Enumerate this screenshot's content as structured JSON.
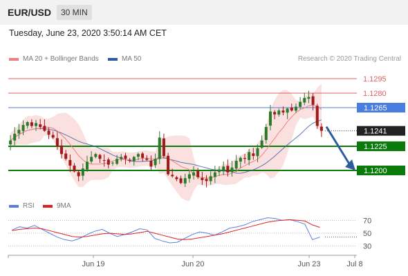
{
  "header": {
    "pair": "EUR/USD",
    "interval": "30 MIN"
  },
  "timestamp": "Tuesday, June 23, 2020 3:50:14 AM CET",
  "legend": {
    "ma20_label": "MA 20 + Bollinger Bands",
    "ma50_label": "MA 50",
    "copyright": "Research © 2020 Trading Central"
  },
  "rsi_legend": {
    "rsi_label": "RSI",
    "ma9_label": "9MA"
  },
  "colors": {
    "resistance": "#e06060",
    "pivot": "#4a7de0",
    "support": "#0a7a0a",
    "ma20": "#f08080",
    "band_fill": "#fadada",
    "ma50": "#2e5b9c",
    "candle_up": "#2a7a2a",
    "candle_down": "#a01818",
    "arrow": "#2e5b9c",
    "price_label": "#222222",
    "rsi": "#5a7ee0",
    "rsi_ma": "#e02020"
  },
  "chart_data": [
    {
      "type": "candlestick",
      "y_range": [
        1.1185,
        1.1305
      ],
      "x_labels": [
        "Jun 19",
        "Jun 20",
        "Jun 23",
        "Jul 8"
      ],
      "levels": [
        {
          "value": "1.1295",
          "kind": "resistance"
        },
        {
          "value": "1.1280",
          "kind": "resistance"
        },
        {
          "value": "1.1265",
          "kind": "pivot"
        },
        {
          "value": "1.1225",
          "kind": "support"
        },
        {
          "value": "1.1200",
          "kind": "support"
        }
      ],
      "last_price": "1.1241",
      "forecast_arrow": {
        "direction": "down",
        "target": 1.12
      },
      "close_series": [
        1.1231,
        1.1238,
        1.1242,
        1.1247,
        1.125,
        1.1246,
        1.1249,
        1.1245,
        1.1241,
        1.1237,
        1.1234,
        1.1225,
        1.1217,
        1.1212,
        1.1205,
        1.1199,
        1.1194,
        1.1202,
        1.1209,
        1.1214,
        1.1217,
        1.1212,
        1.121,
        1.1206,
        1.1208,
        1.1212,
        1.1214,
        1.1212,
        1.121,
        1.1214,
        1.1217,
        1.1213,
        1.1211,
        1.1204,
        1.1212,
        1.1234,
        1.1215,
        1.1196,
        1.1194,
        1.1191,
        1.1187,
        1.1192,
        1.1196,
        1.1198,
        1.1193,
        1.119,
        1.1189,
        1.1194,
        1.1198,
        1.1201,
        1.1204,
        1.1198,
        1.1203,
        1.121,
        1.1213,
        1.1212,
        1.1219,
        1.1215,
        1.1223,
        1.1231,
        1.1245,
        1.1261,
        1.1258,
        1.1262,
        1.126,
        1.1264,
        1.1262,
        1.1266,
        1.1271,
        1.1275,
        1.1276,
        1.1268,
        1.1246,
        1.1241
      ]
    },
    {
      "type": "line",
      "title": "RSI",
      "y_ticks": [
        "70",
        "50",
        "30"
      ],
      "y_range": [
        20,
        80
      ],
      "series": [
        {
          "name": "RSI",
          "values": [
            55,
            60,
            58,
            62,
            56,
            50,
            44,
            40,
            38,
            42,
            48,
            53,
            56,
            50,
            45,
            48,
            52,
            57,
            55,
            42,
            38,
            35,
            36,
            42,
            48,
            52,
            50,
            47,
            52,
            58,
            60,
            63,
            68,
            71,
            74,
            73,
            70,
            71,
            68,
            64,
            40,
            44
          ]
        },
        {
          "name": "9MA",
          "values": [
            54,
            56,
            57,
            58,
            57,
            54,
            51,
            48,
            45,
            44,
            45,
            47,
            49,
            50,
            49,
            48,
            49,
            51,
            53,
            50,
            47,
            44,
            41,
            40,
            41,
            43,
            45,
            47,
            49,
            52,
            55,
            58,
            61,
            64,
            67,
            69,
            70,
            71,
            70,
            69,
            63,
            59
          ]
        }
      ]
    }
  ]
}
